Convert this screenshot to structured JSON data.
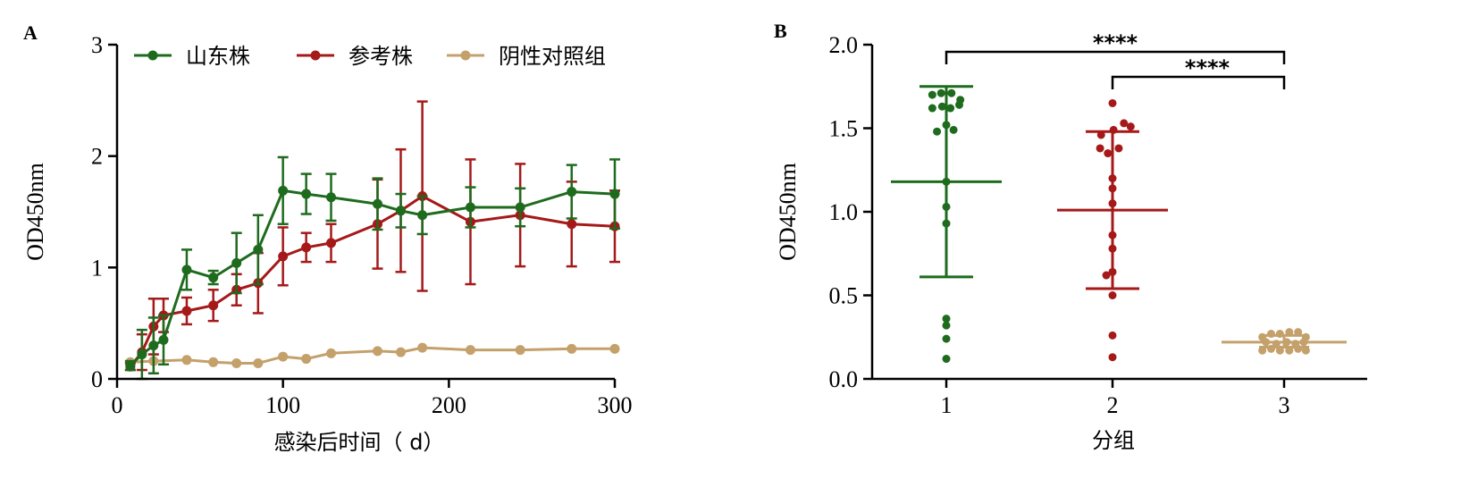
{
  "chart_data": [
    {
      "panel_label": "A",
      "type": "line",
      "xlabel": "感染后时间（ d）",
      "ylabel": "OD450nm",
      "xlim": [
        0,
        300
      ],
      "ylim": [
        0,
        3
      ],
      "xticks": [
        0,
        100,
        200,
        300
      ],
      "yticks": [
        0,
        1,
        2,
        3
      ],
      "grid": false,
      "legend_position": "top",
      "series": [
        {
          "name": "山东株",
          "color": "#1e6b1e",
          "points": [
            {
              "x": 8,
              "y": 0.12,
              "err": 0.04
            },
            {
              "x": 15,
              "y": 0.22,
              "err": 0.22
            },
            {
              "x": 22,
              "y": 0.3,
              "err": 0.25
            },
            {
              "x": 28,
              "y": 0.35,
              "err": 0.22
            },
            {
              "x": 42,
              "y": 0.98,
              "err": 0.18
            },
            {
              "x": 58,
              "y": 0.91,
              "err": 0.06
            },
            {
              "x": 72,
              "y": 1.04,
              "err": 0.27
            },
            {
              "x": 85,
              "y": 1.16,
              "err": 0.31
            },
            {
              "x": 100,
              "y": 1.69,
              "err": 0.3
            },
            {
              "x": 114,
              "y": 1.66,
              "err": 0.18
            },
            {
              "x": 129,
              "y": 1.63,
              "err": 0.21
            },
            {
              "x": 157,
              "y": 1.57,
              "err": 0.23
            },
            {
              "x": 171,
              "y": 1.51,
              "err": 0.15
            },
            {
              "x": 184,
              "y": 1.47,
              "err": 0.17
            },
            {
              "x": 213,
              "y": 1.54,
              "err": 0.18
            },
            {
              "x": 243,
              "y": 1.54,
              "err": 0.17
            },
            {
              "x": 274,
              "y": 1.68,
              "err": 0.24
            },
            {
              "x": 300,
              "y": 1.66,
              "err": 0.31
            }
          ]
        },
        {
          "name": "参考株",
          "color": "#a51919",
          "points": [
            {
              "x": 8,
              "y": 0.11,
              "err": 0.03
            },
            {
              "x": 15,
              "y": 0.24,
              "err": 0.16
            },
            {
              "x": 22,
              "y": 0.47,
              "err": 0.25
            },
            {
              "x": 28,
              "y": 0.57,
              "err": 0.15
            },
            {
              "x": 42,
              "y": 0.61,
              "err": 0.12
            },
            {
              "x": 58,
              "y": 0.66,
              "err": 0.14
            },
            {
              "x": 72,
              "y": 0.8,
              "err": 0.14
            },
            {
              "x": 85,
              "y": 0.86,
              "err": 0.27
            },
            {
              "x": 100,
              "y": 1.1,
              "err": 0.26
            },
            {
              "x": 114,
              "y": 1.18,
              "err": 0.13
            },
            {
              "x": 129,
              "y": 1.22,
              "err": 0.17
            },
            {
              "x": 157,
              "y": 1.39,
              "err": 0.4
            },
            {
              "x": 171,
              "y": 1.51,
              "err": 0.55
            },
            {
              "x": 184,
              "y": 1.64,
              "err": 0.85
            },
            {
              "x": 213,
              "y": 1.41,
              "err": 0.56
            },
            {
              "x": 243,
              "y": 1.47,
              "err": 0.46
            },
            {
              "x": 274,
              "y": 1.39,
              "err": 0.38
            },
            {
              "x": 300,
              "y": 1.37,
              "err": 0.32
            }
          ]
        },
        {
          "name": "阴性对照组",
          "color": "#c4a06b",
          "points": [
            {
              "x": 8,
              "y": 0.15
            },
            {
              "x": 22,
              "y": 0.16
            },
            {
              "x": 42,
              "y": 0.17
            },
            {
              "x": 58,
              "y": 0.15
            },
            {
              "x": 72,
              "y": 0.14
            },
            {
              "x": 85,
              "y": 0.14
            },
            {
              "x": 100,
              "y": 0.2
            },
            {
              "x": 114,
              "y": 0.18
            },
            {
              "x": 129,
              "y": 0.23
            },
            {
              "x": 157,
              "y": 0.25
            },
            {
              "x": 171,
              "y": 0.24
            },
            {
              "x": 184,
              "y": 0.28
            },
            {
              "x": 213,
              "y": 0.26
            },
            {
              "x": 243,
              "y": 0.26
            },
            {
              "x": 274,
              "y": 0.27
            },
            {
              "x": 300,
              "y": 0.27
            }
          ]
        }
      ]
    },
    {
      "panel_label": "B",
      "type": "scatter",
      "xlabel": "分组",
      "ylabel": "OD450nm",
      "ylim": [
        0,
        2.0
      ],
      "yticks": [
        0.0,
        0.5,
        1.0,
        1.5,
        2.0
      ],
      "ytick_labels": [
        "0.0",
        "0.5",
        "1.0",
        "1.5",
        "2.0"
      ],
      "categories": [
        "1",
        "2",
        "3"
      ],
      "grid": false,
      "groups": [
        {
          "category": "1",
          "color": "#1e6b1e",
          "mean": 1.18,
          "sd_low": 0.61,
          "sd_high": 1.75,
          "points": [
            {
              "dx": -0.27,
              "y": 1.7
            },
            {
              "dx": -0.1,
              "y": 1.71
            },
            {
              "dx": 0.1,
              "y": 1.71
            },
            {
              "dx": 0.27,
              "y": 1.67
            },
            {
              "dx": -0.27,
              "y": 1.62
            },
            {
              "dx": -0.08,
              "y": 1.63
            },
            {
              "dx": 0.08,
              "y": 1.62
            },
            {
              "dx": 0.25,
              "y": 1.64
            },
            {
              "dx": -0.18,
              "y": 1.48
            },
            {
              "dx": 0.0,
              "y": 1.52
            },
            {
              "dx": 0.14,
              "y": 1.49
            },
            {
              "dx": 0.0,
              "y": 1.18
            },
            {
              "dx": 0.0,
              "y": 1.03
            },
            {
              "dx": 0.0,
              "y": 0.93
            },
            {
              "dx": 0.0,
              "y": 0.36
            },
            {
              "dx": 0.0,
              "y": 0.32
            },
            {
              "dx": 0.0,
              "y": 0.24
            },
            {
              "dx": 0.0,
              "y": 0.12
            }
          ]
        },
        {
          "category": "2",
          "color": "#a51919",
          "mean": 1.01,
          "sd_low": 0.54,
          "sd_high": 1.48,
          "points": [
            {
              "dx": 0.0,
              "y": 1.65
            },
            {
              "dx": 0.22,
              "y": 1.53
            },
            {
              "dx": 0.35,
              "y": 1.51
            },
            {
              "dx": -0.22,
              "y": 1.46
            },
            {
              "dx": 0.02,
              "y": 1.49
            },
            {
              "dx": -0.24,
              "y": 1.38
            },
            {
              "dx": -0.09,
              "y": 1.35
            },
            {
              "dx": 0.12,
              "y": 1.38
            },
            {
              "dx": 0.0,
              "y": 1.2
            },
            {
              "dx": 0.0,
              "y": 1.14
            },
            {
              "dx": 0.0,
              "y": 1.05
            },
            {
              "dx": 0.0,
              "y": 0.86
            },
            {
              "dx": 0.0,
              "y": 0.78
            },
            {
              "dx": -0.12,
              "y": 0.62
            },
            {
              "dx": 0.0,
              "y": 0.64
            },
            {
              "dx": 0.0,
              "y": 0.5
            },
            {
              "dx": 0.0,
              "y": 0.26
            },
            {
              "dx": 0.0,
              "y": 0.13
            }
          ]
        },
        {
          "category": "3",
          "color": "#c4a06b",
          "mean": 0.22,
          "sd_low": 0.19,
          "sd_high": 0.26,
          "points": [
            {
              "dx": -0.42,
              "y": 0.25
            },
            {
              "dx": -0.25,
              "y": 0.27
            },
            {
              "dx": -0.08,
              "y": 0.27
            },
            {
              "dx": 0.1,
              "y": 0.28
            },
            {
              "dx": 0.27,
              "y": 0.28
            },
            {
              "dx": 0.42,
              "y": 0.25
            },
            {
              "dx": -0.35,
              "y": 0.22
            },
            {
              "dx": -0.15,
              "y": 0.21
            },
            {
              "dx": 0.05,
              "y": 0.22
            },
            {
              "dx": 0.22,
              "y": 0.21
            },
            {
              "dx": 0.38,
              "y": 0.22
            },
            {
              "dx": -0.42,
              "y": 0.17
            },
            {
              "dx": -0.25,
              "y": 0.18
            },
            {
              "dx": -0.08,
              "y": 0.17
            },
            {
              "dx": 0.1,
              "y": 0.17
            },
            {
              "dx": 0.27,
              "y": 0.18
            },
            {
              "dx": 0.42,
              "y": 0.17
            }
          ]
        }
      ],
      "significance": [
        {
          "from": "1",
          "to": "3",
          "label": "****"
        },
        {
          "from": "2",
          "to": "3",
          "label": "****"
        }
      ]
    }
  ]
}
